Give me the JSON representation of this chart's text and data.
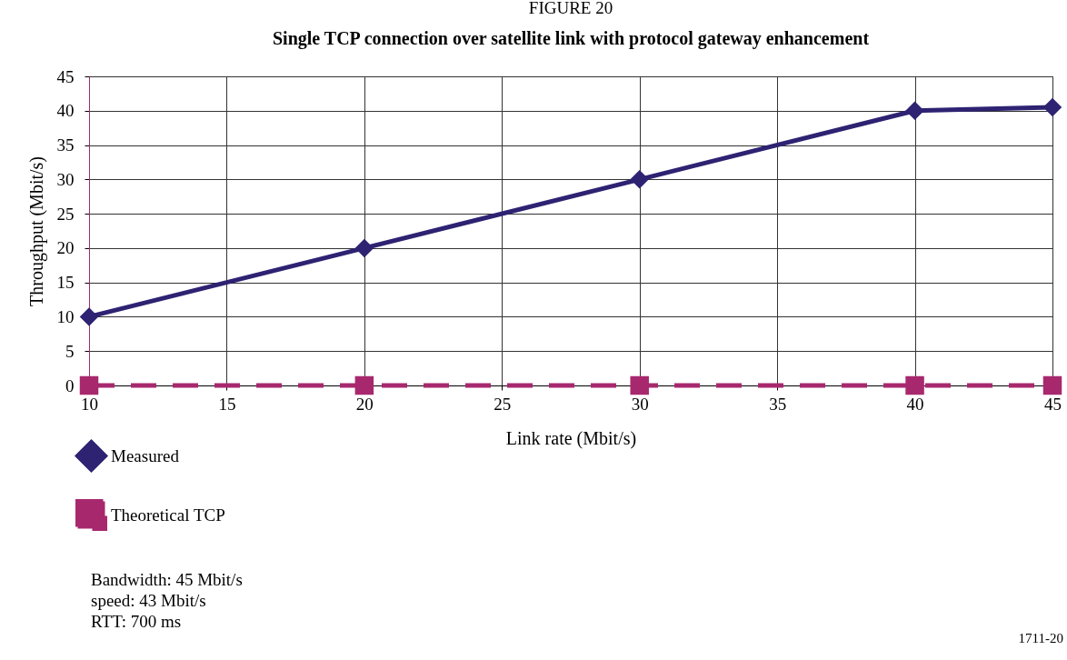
{
  "chart_data": {
    "type": "line",
    "title": "FIGURE 20",
    "subtitle": "Single TCP connection over satellite link with protocol gateway enhancement",
    "xlabel": "Link rate (Mbit/s)",
    "ylabel": "Throughput (Mbit/s)",
    "x": [
      10,
      20,
      30,
      40,
      45
    ],
    "series": [
      {
        "name": "Measured",
        "color": "#2e2272",
        "values": [
          10,
          20,
          30,
          40,
          40.5
        ],
        "marker": "diamond",
        "line_style": "solid"
      },
      {
        "name": "Theoretical TCP",
        "color": "#a8286e",
        "values": [
          0,
          0,
          0,
          0,
          0
        ],
        "marker": "square",
        "line_style": "dashed"
      }
    ],
    "xlim": [
      10,
      45
    ],
    "xticks": [
      10,
      15,
      20,
      25,
      30,
      35,
      40,
      45
    ],
    "ylim": [
      0,
      45
    ],
    "yticks": [
      0,
      5,
      10,
      15,
      20,
      25,
      30,
      35,
      40,
      45
    ],
    "grid": true,
    "legend": "bottom",
    "annotations": [
      "Bandwidth: 45 Mbit/s",
      "speed: 43 Mbit/s",
      "RTT: 700 ms",
      "1711-20"
    ]
  }
}
